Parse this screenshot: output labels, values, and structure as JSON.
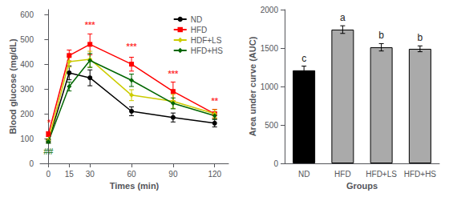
{
  "chart_data": [
    {
      "type": "line",
      "x": [
        0,
        15,
        30,
        60,
        90,
        120
      ],
      "series": [
        {
          "name": "ND",
          "color": "#000000",
          "marker": "circle",
          "values": [
            90,
            365,
            345,
            210,
            185,
            162
          ],
          "errors": [
            8,
            28,
            32,
            18,
            18,
            15
          ]
        },
        {
          "name": "HFD",
          "color": "#FF0000",
          "marker": "square",
          "values": [
            118,
            435,
            480,
            400,
            290,
            200
          ],
          "errors": [
            10,
            22,
            42,
            28,
            38,
            18
          ]
        },
        {
          "name": "HDF+LS",
          "color": "#CCCC00",
          "marker": "diamond",
          "values": [
            92,
            410,
            420,
            275,
            250,
            200
          ],
          "errors": [
            8,
            22,
            32,
            22,
            28,
            16
          ]
        },
        {
          "name": "HFD+HS",
          "color": "#006600",
          "marker": "diamond",
          "values": [
            88,
            310,
            415,
            335,
            242,
            192
          ],
          "errors": [
            7,
            18,
            28,
            25,
            22,
            14
          ]
        }
      ],
      "annotations": [
        {
          "text": "*",
          "x": 0.5,
          "y": 143,
          "color": "#FF0000"
        },
        {
          "text": "##",
          "x": 0,
          "y": 68,
          "color": "#006600"
        },
        {
          "text": "***",
          "x": 30,
          "y": 537,
          "color": "#FF0000"
        },
        {
          "text": "***",
          "x": 60,
          "y": 452,
          "color": "#FF0000"
        },
        {
          "text": "***",
          "x": 90,
          "y": 342,
          "color": "#FF0000"
        },
        {
          "text": "**",
          "x": 120,
          "y": 230,
          "color": "#FF0000"
        }
      ],
      "xlabel": "Times (min)",
      "ylabel": "Blood glucose (mg/dL)",
      "xlim": [
        -6,
        130
      ],
      "xticks": [
        0,
        15,
        30,
        60,
        90,
        120
      ],
      "ylim": [
        0,
        620
      ],
      "yticks": [
        0,
        100,
        200,
        300,
        400,
        500,
        600
      ],
      "legend": "upper right",
      "grid": false
    },
    {
      "type": "bar",
      "categories": [
        "ND",
        "HFD",
        "HFD+LS",
        "HFD+HS"
      ],
      "values": [
        1210,
        1740,
        1510,
        1490
      ],
      "errors": [
        55,
        50,
        48,
        38
      ],
      "letters": [
        "c",
        "a",
        "b",
        "b"
      ],
      "colors": [
        "#000000",
        "#aaaaaa",
        "#aaaaaa",
        "#aaaaaa"
      ],
      "xlabel": "Groups",
      "ylabel": "Area under curve (AUC)",
      "ylim": [
        0,
        2000
      ],
      "yticks": [
        0,
        500,
        1000,
        1500,
        2000
      ],
      "grid": false
    }
  ]
}
